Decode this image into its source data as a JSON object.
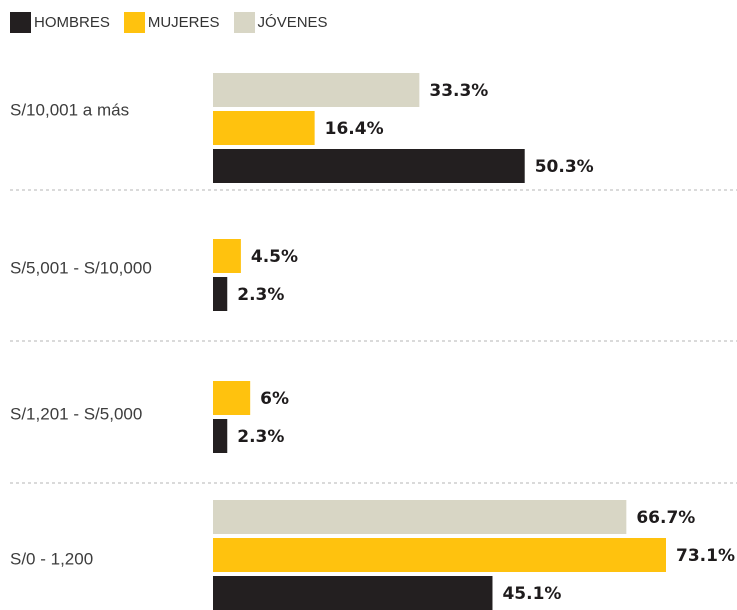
{
  "chart_data": {
    "type": "bar",
    "orientation": "horizontal",
    "legend_placement": "top-left",
    "grid": false,
    "title": "",
    "xlabel": "",
    "ylabel": "",
    "xlim": [
      0,
      73.1
    ],
    "categories": [
      "S/10,001 a más",
      "S/5,001 - S/10,000",
      "S/1,201 - S/5,000",
      "S/0 - 1,200"
    ],
    "series": [
      {
        "name": "HOMBRES",
        "color": "#231f20",
        "values": [
          50.3,
          2.3,
          2.3,
          45.1
        ],
        "labels": [
          "50.3%",
          "2.3%",
          "2.3%",
          "45.1%"
        ]
      },
      {
        "name": "MUJERES",
        "color": "#ffc20e",
        "values": [
          16.4,
          4.5,
          6,
          73.1
        ],
        "labels": [
          "16.4%",
          "4.5%",
          "6%",
          "73.1%"
        ]
      },
      {
        "name": "JÓVENES",
        "color": "#d8d6c5",
        "values": [
          33.3,
          null,
          null,
          66.7
        ],
        "labels": [
          "33.3%",
          "",
          "",
          "66.7%"
        ]
      }
    ]
  }
}
